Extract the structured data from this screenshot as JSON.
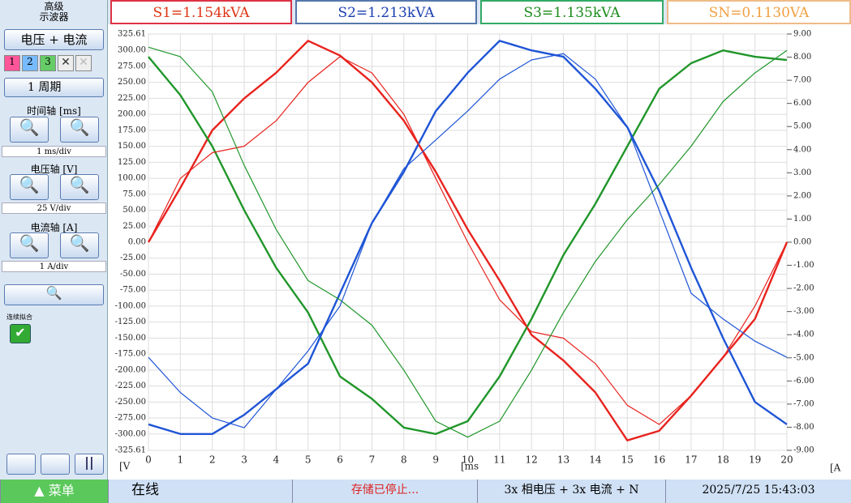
{
  "sidebar": {
    "title": [
      "高级",
      "示波器"
    ],
    "mode": "电压 + 电流",
    "channels": [
      "1",
      "2",
      "3"
    ],
    "period": "1 周期",
    "time_axis": "时间轴 [ms]",
    "time_scale": "1 ms/div",
    "voltage_axis": "电压轴 [V]",
    "voltage_scale": "25 V/div",
    "current_axis": "电流轴 [A]",
    "current_scale": "1 A/div",
    "fit": "连续拟合",
    "menu": "菜单"
  },
  "header": {
    "readings": [
      "S1=1.154kVA",
      "S2=1.213kVA",
      "S3=1.135kVA",
      "SN=0.1130VA"
    ]
  },
  "status": {
    "connection": "在线",
    "storage": "存储已停止...",
    "wiring": "3x 相电压 + 3x 电流 + N",
    "datetime": "2025/7/25 15:43:03"
  },
  "chart_data": {
    "type": "line",
    "xlabel": "[ms",
    "ylabel": "[V",
    "y2label": "[A",
    "grid": true,
    "xlim": [
      0,
      20
    ],
    "xticks": [
      0,
      1,
      2,
      3,
      4,
      5,
      6,
      7,
      8,
      9,
      10,
      11,
      12,
      13,
      14,
      15,
      16,
      17,
      18,
      19,
      20
    ],
    "ylim": [
      -325.61,
      325.61
    ],
    "yticks": [
      {
        "value": 325.61,
        "label": "325.61"
      },
      {
        "value": 300,
        "label": "300.00"
      },
      {
        "value": 275,
        "label": "275.00"
      },
      {
        "value": 250,
        "label": "250.00"
      },
      {
        "value": 225,
        "label": "225.00"
      },
      {
        "value": 200,
        "label": "200.00"
      },
      {
        "value": 175,
        "label": "175.00"
      },
      {
        "value": 150,
        "label": "150.00"
      },
      {
        "value": 125,
        "label": "125.00"
      },
      {
        "value": 100,
        "label": "100.00"
      },
      {
        "value": 75,
        "label": "75.00"
      },
      {
        "value": 50,
        "label": "50.00"
      },
      {
        "value": 25,
        "label": "25.00"
      },
      {
        "value": 0,
        "label": "0.00"
      },
      {
        "value": -25,
        "label": "-25.00"
      },
      {
        "value": -50,
        "label": "-50.00"
      },
      {
        "value": -75,
        "label": "-75.00"
      },
      {
        "value": -100,
        "label": "-100.00"
      },
      {
        "value": -125,
        "label": "-125.00"
      },
      {
        "value": -150,
        "label": "-150.00"
      },
      {
        "value": -175,
        "label": "-175.00"
      },
      {
        "value": -200,
        "label": "-200.00"
      },
      {
        "value": -225,
        "label": "-225.00"
      },
      {
        "value": -250,
        "label": "-250.00"
      },
      {
        "value": -275,
        "label": "-275.00"
      },
      {
        "value": -300,
        "label": "-300.00"
      },
      {
        "value": -325.61,
        "label": "-325.61"
      }
    ],
    "y2lim": [
      -9,
      9
    ],
    "y2ticks": [
      {
        "value": 9,
        "label": "9.00"
      },
      {
        "value": 8,
        "label": "8.00"
      },
      {
        "value": 7,
        "label": "7.00"
      },
      {
        "value": 6,
        "label": "6.00"
      },
      {
        "value": 5,
        "label": "5.00"
      },
      {
        "value": 4,
        "label": "4.00"
      },
      {
        "value": 3,
        "label": "3.00"
      },
      {
        "value": 2,
        "label": "2.00"
      },
      {
        "value": 1,
        "label": "1.00"
      },
      {
        "value": 0,
        "label": "0.00"
      },
      {
        "value": -1,
        "label": "-1.00"
      },
      {
        "value": -2,
        "label": "-2.00"
      },
      {
        "value": -3,
        "label": "-3.00"
      },
      {
        "value": -4,
        "label": "-4.00"
      },
      {
        "value": -5,
        "label": "-5.00"
      },
      {
        "value": -6,
        "label": "-6.00"
      },
      {
        "value": -7,
        "label": "-7.00"
      },
      {
        "value": -8,
        "label": "-8.00"
      },
      {
        "value": -9,
        "label": "-9.00"
      }
    ],
    "x": [
      0,
      1,
      2,
      3,
      4,
      5,
      6,
      7,
      8,
      9,
      10,
      11,
      12,
      13,
      14,
      15,
      16,
      17,
      18,
      19,
      20
    ],
    "series": [
      {
        "color": "#e8231e",
        "values": [
          0,
          85,
          175,
          225,
          265,
          315,
          292,
          250,
          190,
          110,
          20,
          -60,
          -145,
          -185,
          -235,
          -310,
          -295,
          -240,
          -180,
          -120,
          0
        ]
      },
      {
        "color": "#20962a",
        "values": [
          290,
          230,
          150,
          50,
          -40,
          -110,
          -210,
          -245,
          -290,
          -300,
          -280,
          -210,
          -120,
          -20,
          60,
          150,
          240,
          280,
          300,
          290,
          285
        ]
      },
      {
        "color": "#1f55d6",
        "values": [
          -285,
          -300,
          -300,
          -270,
          -230,
          -190,
          -80,
          30,
          110,
          205,
          265,
          315,
          300,
          290,
          240,
          180,
          80,
          -40,
          -150,
          -250,
          -285
        ]
      },
      {
        "color": "#e8231e",
        "axis": "y2",
        "values": [
          0,
          2.76,
          3.87,
          4.15,
          5.25,
          6.91,
          8.02,
          7.32,
          5.53,
          2.76,
          0,
          -2.49,
          -3.87,
          -4.15,
          -5.25,
          -7.05,
          -7.88,
          -6.63,
          -4.98,
          -2.76,
          0
        ]
      },
      {
        "color": "#20962a",
        "axis": "y2",
        "values": [
          8.43,
          8.02,
          6.5,
          3.32,
          0.55,
          -1.66,
          -2.49,
          -3.59,
          -5.53,
          -7.74,
          -8.43,
          -7.74,
          -5.53,
          -3.04,
          -0.83,
          0.97,
          2.49,
          4.15,
          6.08,
          7.32,
          8.29
        ]
      },
      {
        "color": "#1f55d6",
        "axis": "y2",
        "values": [
          -4.98,
          -6.5,
          -7.6,
          -8.02,
          -6.36,
          -4.7,
          -2.76,
          0.83,
          3.18,
          4.42,
          5.67,
          7.05,
          7.88,
          8.15,
          7.05,
          4.98,
          1.38,
          -2.21,
          -3.32,
          -4.28,
          -4.98
        ]
      }
    ]
  }
}
